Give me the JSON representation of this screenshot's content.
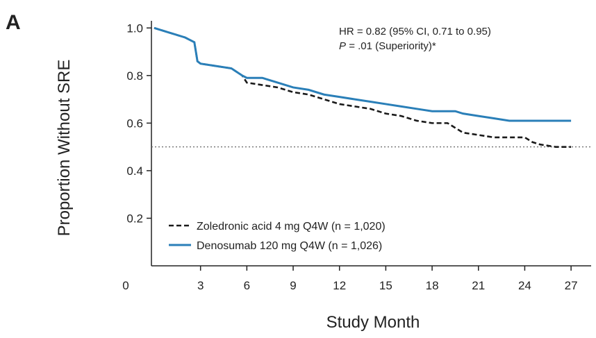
{
  "panel_label": "A",
  "chart_data": {
    "type": "line",
    "x_label": "Study Month",
    "y_label": "Proportion Without SRE",
    "annotation_line1": "HR = 0.82 (95% CI, 0.71 to 0.95)",
    "annotation_line2_italic": "P",
    "annotation_line2_rest": "= .01 (Superiority)*",
    "x": [
      0,
      1,
      2,
      2.6,
      2.8,
      3,
      4,
      5,
      5.7,
      6,
      7,
      8,
      9,
      10,
      11,
      12,
      13,
      14,
      15,
      16,
      17,
      18,
      19,
      19.5,
      20,
      21,
      22,
      23,
      24,
      24.5,
      25,
      26,
      27
    ],
    "series": [
      {
        "name": "Zoledronic acid 4 mg Q4W (n = 1,020)",
        "color": "#1a1a1a",
        "dashed": true,
        "values": [
          1.0,
          0.98,
          0.96,
          0.94,
          0.86,
          0.85,
          0.84,
          0.83,
          0.8,
          0.77,
          0.76,
          0.75,
          0.73,
          0.72,
          0.7,
          0.68,
          0.67,
          0.66,
          0.64,
          0.63,
          0.61,
          0.6,
          0.6,
          0.58,
          0.56,
          0.55,
          0.54,
          0.54,
          0.54,
          0.52,
          0.51,
          0.5,
          0.5
        ]
      },
      {
        "name": "Denosumab 120 mg Q4W (n = 1,026)",
        "color": "#2a7fb8",
        "dashed": false,
        "values": [
          1.0,
          0.98,
          0.96,
          0.94,
          0.86,
          0.85,
          0.84,
          0.83,
          0.8,
          0.79,
          0.79,
          0.77,
          0.75,
          0.74,
          0.72,
          0.71,
          0.7,
          0.69,
          0.68,
          0.67,
          0.66,
          0.65,
          0.65,
          0.65,
          0.64,
          0.63,
          0.62,
          0.61,
          0.61,
          0.61,
          0.61,
          0.61,
          0.61
        ]
      }
    ],
    "reference_line": 0.5,
    "xlim": [
      0,
      28.3
    ],
    "ylim": [
      0,
      1.03
    ],
    "xticks": [
      0,
      3,
      6,
      9,
      12,
      15,
      18,
      21,
      24,
      27
    ],
    "yticks": [
      0.2,
      0.4,
      0.6,
      {
        "value": 1,
        "label": "1.0"
      },
      0.8
    ],
    "legend": "lower-left"
  }
}
